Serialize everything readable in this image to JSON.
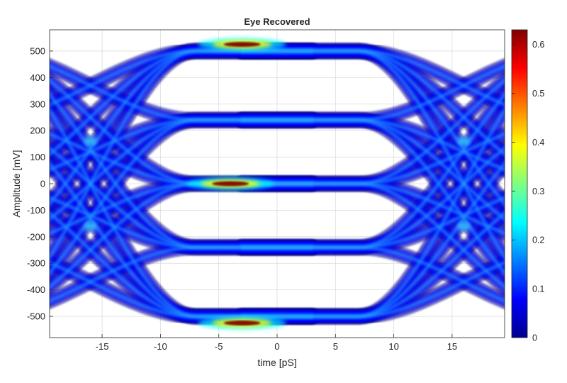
{
  "chart_data": {
    "type": "heatmap",
    "title": "Eye Recovered",
    "xlabel": "time [pS]",
    "ylabel": "Amplitude [mV]",
    "xlim": [
      -19.5,
      19.5
    ],
    "ylim": [
      -580,
      580
    ],
    "x_ticks": [
      -15,
      -10,
      -5,
      0,
      5,
      10,
      15
    ],
    "y_ticks": [
      -500,
      -400,
      -300,
      -200,
      -100,
      0,
      100,
      200,
      300,
      400,
      500
    ],
    "grid": true,
    "colormap": "jet",
    "colorbar": {
      "ticks": [
        0,
        0.1,
        0.2,
        0.3,
        0.4,
        0.5,
        0.6
      ],
      "range": [
        0,
        0.63
      ],
      "placement": "right"
    },
    "signal_levels_mV": [
      -500,
      -240,
      0,
      240,
      500
    ],
    "level_crossings": [
      {
        "x": -16,
        "y": 160
      },
      {
        "x": -16,
        "y": -160
      },
      {
        "x": 16,
        "y": 160
      },
      {
        "x": 16,
        "y": -160
      }
    ],
    "hot_spots": [
      {
        "x": -4,
        "y": 0,
        "density": 0.6
      },
      {
        "x": -3,
        "y": 525,
        "density": 0.55
      },
      {
        "x": -3,
        "y": -525,
        "density": 0.55
      }
    ]
  },
  "colors": {
    "jet": [
      "#00008f",
      "#0000ff",
      "#00ffff",
      "#ffff00",
      "#ff0000",
      "#800000"
    ],
    "grid": "#dcdcdc",
    "axis": "#262626"
  }
}
